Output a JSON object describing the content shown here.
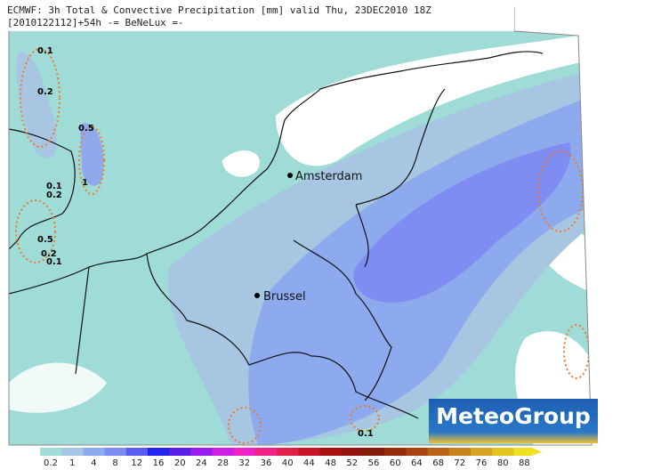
{
  "header": {
    "line1": "ECMWF: 3h Total & Convective Precipitation [mm] valid Thu, 23DEC2010 18Z",
    "line2": "[2010122112]+54h -= BeNeLux =-"
  },
  "cities": [
    "Amsterdam",
    "Brussel"
  ],
  "contour_labels": [
    "0.1",
    "0.2",
    "0.5",
    "0.1",
    "0.2",
    "1",
    "0.5",
    "0.2",
    "0.1",
    "0.1"
  ],
  "logo": "MeteoGroup",
  "legend": {
    "labels": [
      0.2,
      1,
      4,
      8,
      12,
      16,
      20,
      24,
      28,
      32,
      36,
      40,
      44,
      48,
      52,
      56,
      60,
      64,
      68,
      72,
      76,
      80,
      88
    ],
    "colors": [
      "#a0dcd8",
      "#a4c6e2",
      "#8daaee",
      "#7d8cf2",
      "#5a5cf0",
      "#2424f0",
      "#5a1ee8",
      "#9a1ef0",
      "#cc20e4",
      "#ee22c4",
      "#f02288",
      "#e02048",
      "#c81424",
      "#a81010",
      "#941410",
      "#841c0a",
      "#962c0a",
      "#a84410",
      "#b86214",
      "#c8821c",
      "#d8a420",
      "#e6c420",
      "#f0e020"
    ]
  }
}
